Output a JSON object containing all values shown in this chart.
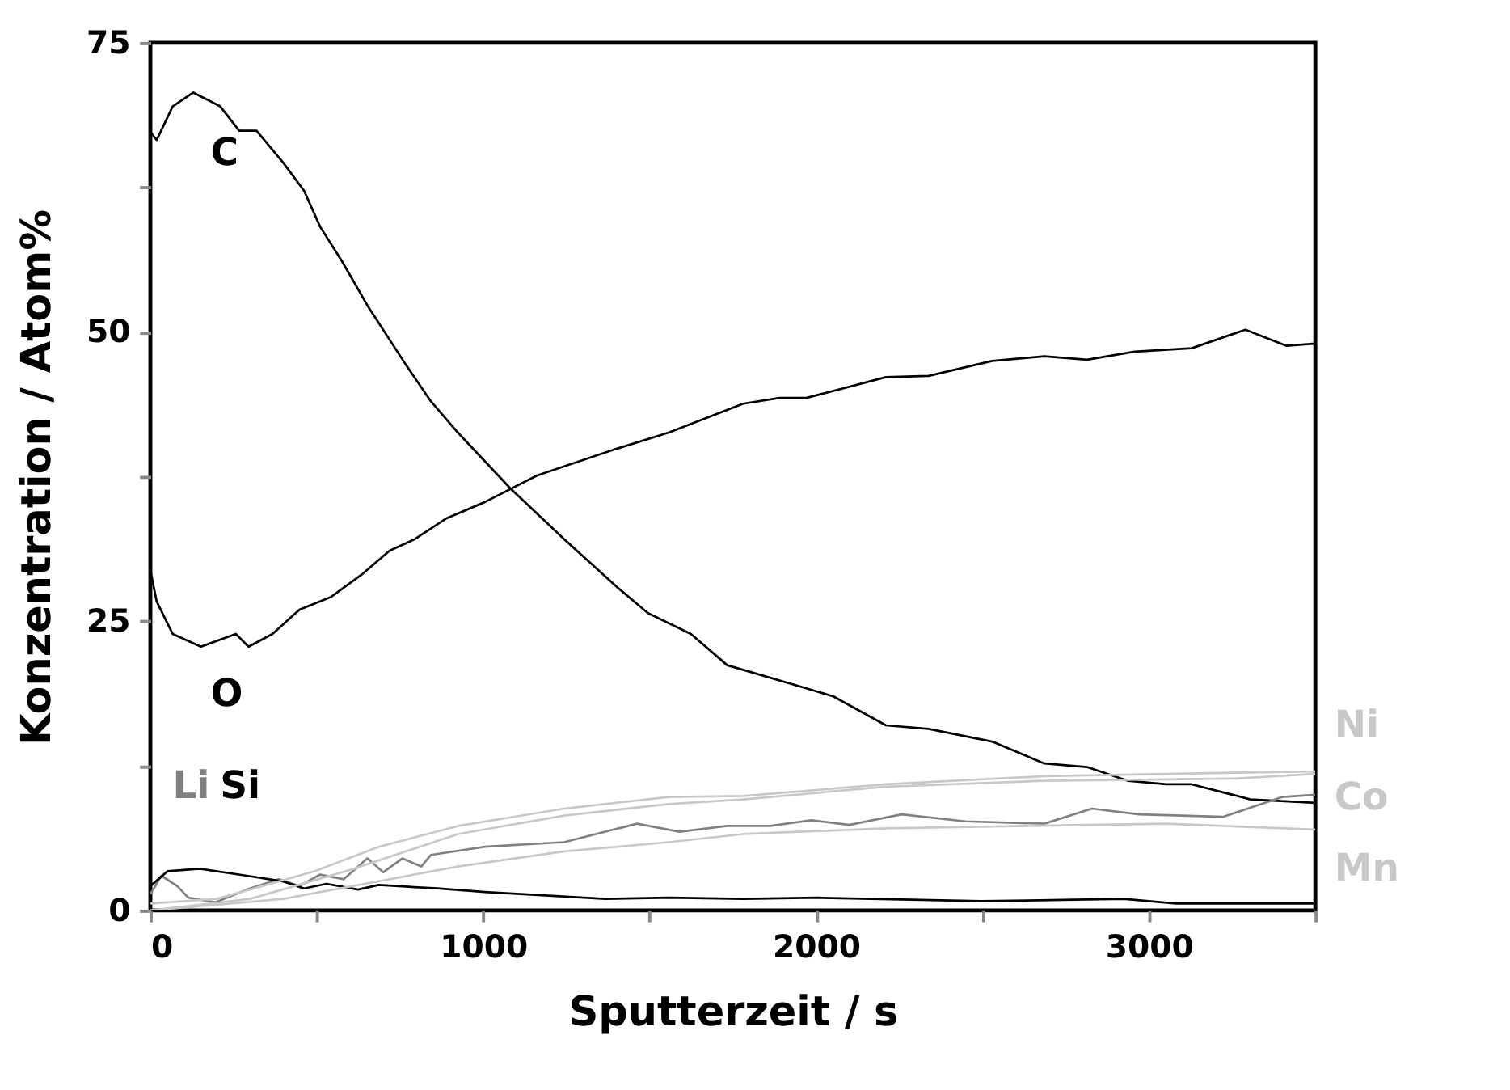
{
  "chart_data": {
    "type": "line",
    "xlabel": "Sputterzeit / s",
    "ylabel": "Konzentration / Atom%",
    "xlim": [
      0,
      3500
    ],
    "ylim": [
      0,
      75
    ],
    "xticks": [
      0,
      {
        "value": 500,
        "label": null
      },
      1000,
      {
        "value": 1500,
        "label": null
      },
      2000,
      {
        "value": 2500,
        "label": null
      },
      3000,
      {
        "value": 3500,
        "label": null
      }
    ],
    "yticks": [
      0,
      {
        "value": 12.5,
        "label": null
      },
      25,
      {
        "value": 37.5,
        "label": null
      },
      50,
      {
        "value": 62.5,
        "label": null
      },
      75
    ],
    "grid": false,
    "marker": "none",
    "line_style": "solid",
    "series": [
      {
        "name": "C",
        "color": "#000000",
        "x": [
          0,
          19,
          67,
          129,
          210,
          267,
          319,
          400,
          462,
          510,
          576,
          652,
          767,
          843,
          924,
          1081,
          1243,
          1400,
          1495,
          1624,
          1733,
          1781,
          1971,
          2052,
          2210,
          2338,
          2529,
          2686,
          2814,
          2938,
          3052,
          3129,
          3305,
          3500
        ],
        "values": [
          67.3,
          66.6,
          69.5,
          70.7,
          69.5,
          67.4,
          67.4,
          64.6,
          62.2,
          59.1,
          56.1,
          52.3,
          47.2,
          44.0,
          41.3,
          36.5,
          32.1,
          28.0,
          25.7,
          23.9,
          21.2,
          20.8,
          19.2,
          18.5,
          16.0,
          15.7,
          14.6,
          12.7,
          12.4,
          11.2,
          10.9,
          10.9,
          9.6,
          9.3
        ]
      },
      {
        "name": "O",
        "color": "#000000",
        "x": [
          0,
          19,
          67,
          152,
          257,
          295,
          367,
          448,
          543,
          638,
          719,
          795,
          890,
          1005,
          1162,
          1400,
          1557,
          1781,
          1890,
          1971,
          2210,
          2338,
          2529,
          2686,
          2814,
          2957,
          3129,
          3290,
          3414,
          3500
        ],
        "values": [
          29.4,
          26.7,
          23.9,
          22.8,
          23.9,
          22.8,
          23.9,
          26.0,
          27.1,
          29.1,
          31.1,
          32.1,
          33.9,
          35.3,
          37.6,
          39.9,
          41.3,
          43.8,
          44.3,
          44.3,
          46.1,
          46.2,
          47.5,
          47.9,
          47.6,
          48.3,
          48.6,
          50.2,
          48.8,
          49.0
        ]
      },
      {
        "name": "Li",
        "color": "#808080",
        "x": [
          0,
          33,
          81,
          114,
          195,
          290,
          386,
          448,
          510,
          581,
          652,
          700,
          757,
          814,
          843,
          1005,
          1243,
          1462,
          1590,
          1733,
          1862,
          1986,
          2100,
          2257,
          2448,
          2686,
          2829,
          2971,
          3224,
          3400,
          3500
        ],
        "values": [
          1.4,
          3.0,
          2.1,
          1.1,
          0.7,
          1.8,
          2.7,
          2.1,
          3.1,
          2.7,
          4.5,
          3.3,
          4.5,
          3.8,
          4.8,
          5.5,
          5.9,
          7.5,
          6.8,
          7.3,
          7.3,
          7.8,
          7.4,
          8.3,
          7.7,
          7.5,
          8.8,
          8.3,
          8.1,
          9.8,
          10.0
        ]
      },
      {
        "name": "Si",
        "color": "#000000",
        "x": [
          0,
          52,
          148,
          290,
          400,
          462,
          529,
          624,
          686,
          862,
          1005,
          1367,
          1557,
          1781,
          2005,
          2495,
          2924,
          3081,
          3500
        ],
        "values": [
          2.1,
          3.4,
          3.6,
          3.0,
          2.5,
          1.9,
          2.3,
          1.8,
          2.2,
          1.9,
          1.6,
          1.0,
          1.1,
          1.0,
          1.1,
          0.8,
          1.0,
          0.6,
          0.6
        ]
      },
      {
        "name": "Ni",
        "color": "#c8c8c8",
        "x": [
          0,
          200,
          495,
          686,
          924,
          1243,
          1557,
          1781,
          2210,
          2686,
          3257,
          3500
        ],
        "values": [
          0.6,
          1.0,
          3.4,
          5.5,
          7.3,
          8.8,
          9.8,
          9.9,
          10.9,
          11.6,
          11.9,
          12.0
        ]
      },
      {
        "name": "Co",
        "color": "#c8c8c8",
        "x": [
          0,
          300,
          600,
          924,
          1243,
          1557,
          1781,
          2210,
          2686,
          3257,
          3500
        ],
        "values": [
          0,
          1.0,
          3.5,
          6.6,
          8.2,
          9.2,
          9.6,
          10.7,
          11.2,
          11.4,
          11.8
        ]
      },
      {
        "name": "Mn",
        "color": "#c8c8c8",
        "x": [
          0,
          400,
          924,
          1243,
          1557,
          1781,
          2210,
          3052,
          3500
        ],
        "values": [
          0,
          1.0,
          3.8,
          5.1,
          5.9,
          6.6,
          7.1,
          7.5,
          7.0
        ]
      }
    ]
  }
}
